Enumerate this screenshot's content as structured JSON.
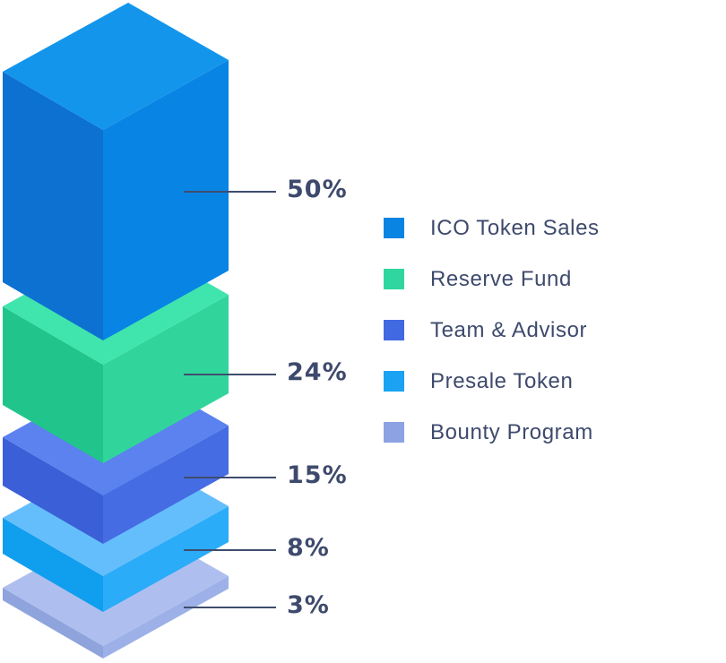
{
  "chart_data": {
    "type": "bar",
    "variant": "isometric-stacked-3d-blocks",
    "title": "",
    "unit": "%",
    "categories": [
      "ICO Token Sales",
      "Reserve Fund",
      "Team & Advisor",
      "Presale Token",
      "Bounty Program"
    ],
    "values": [
      50,
      24,
      15,
      8,
      3
    ],
    "value_labels": [
      "50%",
      "24%",
      "15%",
      "8%",
      "3%"
    ],
    "legend_position": "right",
    "background_color": "#ffffff",
    "label_color": "#3e4a6d",
    "leader_line_color": "#3f4d6e",
    "segments": [
      {
        "id": "ico-token-sales",
        "label": "ICO Token Sales",
        "value": 50,
        "value_label": "50%",
        "swatch": "#0a84e2",
        "faces": {
          "top": "#1395ec",
          "left": "#0d71d1",
          "right": "#0884e4"
        }
      },
      {
        "id": "reserve-fund",
        "label": "Reserve Fund",
        "value": 24,
        "value_label": "24%",
        "swatch": "#2fd6a0",
        "faces": {
          "top": "#40e5ad",
          "left": "#21c58b",
          "right": "#31d59c"
        }
      },
      {
        "id": "team-advisor",
        "label": "Team & Advisor",
        "value": 15,
        "value_label": "15%",
        "swatch": "#4169e1",
        "faces": {
          "top": "#5b82ee",
          "left": "#3a5fd7",
          "right": "#456ce2"
        }
      },
      {
        "id": "presale-token",
        "label": "Presale Token",
        "value": 8,
        "value_label": "8%",
        "swatch": "#1ba2f2",
        "faces": {
          "top": "#65befc",
          "left": "#109eee",
          "right": "#2aacf8"
        }
      },
      {
        "id": "bounty-program",
        "label": "Bounty Program",
        "value": 3,
        "value_label": "3%",
        "swatch": "#8ca2e2",
        "faces": {
          "top": "#aebfef",
          "left": "#8fa3dd",
          "right": "#9db1e8"
        }
      }
    ]
  }
}
